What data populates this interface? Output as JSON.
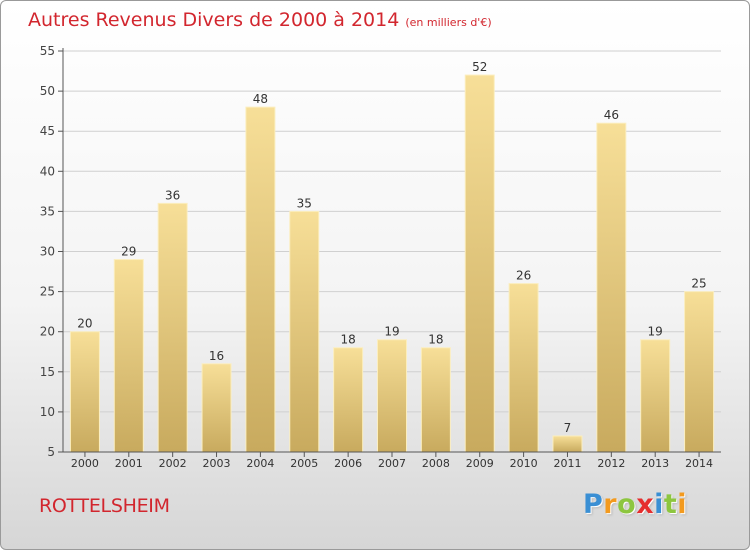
{
  "header": {
    "title": "Autres Revenus Divers de 2000 à 2014",
    "subtitle": "(en milliers d'€)"
  },
  "footer": {
    "commune": "ROTTELSHEIM",
    "logo_letters": [
      {
        "char": "P",
        "color": "#3a8fd4"
      },
      {
        "char": "r",
        "color": "#f39a1e"
      },
      {
        "char": "o",
        "color": "#8dc63f"
      },
      {
        "char": "x",
        "color": "#e52e2e"
      },
      {
        "char": "i",
        "color": "#3a8fd4"
      },
      {
        "char": "t",
        "color": "#8dc63f"
      },
      {
        "char": "i",
        "color": "#f39a1e"
      }
    ]
  },
  "colors": {
    "title": "#d2262e",
    "bar_light": "#f7df98",
    "bar_dark": "#c8aa5e",
    "grid": "#d0d0d0"
  },
  "chart_data": {
    "type": "bar",
    "title": "Autres Revenus Divers de 2000 à 2014",
    "subtitle": "(en milliers d'€)",
    "categories": [
      "2000",
      "2001",
      "2002",
      "2003",
      "2004",
      "2005",
      "2006",
      "2007",
      "2008",
      "2009",
      "2010",
      "2011",
      "2012",
      "2013",
      "2014"
    ],
    "values": [
      20,
      29,
      36,
      16,
      48,
      35,
      18,
      19,
      18,
      52,
      26,
      7,
      46,
      19,
      25
    ],
    "value_labels": [
      "20",
      "29",
      "36",
      "16",
      "48",
      "35",
      "18",
      "19",
      "18",
      "52",
      "26",
      "7",
      "46",
      "19",
      "25"
    ],
    "ylim": [
      5,
      55
    ],
    "yticks": [
      5,
      10,
      15,
      20,
      25,
      30,
      35,
      40,
      45,
      50,
      55
    ],
    "ytick_labels": [
      "5",
      "10",
      "15",
      "20",
      "25",
      "30",
      "35",
      "40",
      "45",
      "50",
      "55"
    ],
    "grid": true,
    "legend": "none"
  }
}
